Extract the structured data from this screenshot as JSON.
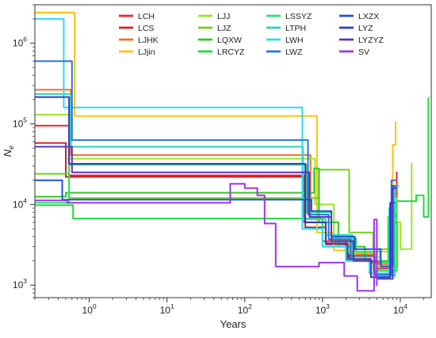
{
  "chart_data": {
    "type": "line",
    "step": true,
    "xlabel": "Years",
    "ylabel": "N",
    "ylabel_subscript": "e",
    "x_scale": "log",
    "y_scale": "log",
    "xlim": [
      0.2,
      25000
    ],
    "ylim": [
      700,
      3000000
    ],
    "x_ticks": [
      {
        "value": 1,
        "label": "10",
        "exp": "0"
      },
      {
        "value": 10,
        "label": "10",
        "exp": "1"
      },
      {
        "value": 100,
        "label": "10",
        "exp": "2"
      },
      {
        "value": 1000,
        "label": "10",
        "exp": "3"
      },
      {
        "value": 10000,
        "label": "10",
        "exp": "4"
      }
    ],
    "y_ticks": [
      {
        "value": 1000,
        "label": "10",
        "exp": "3"
      },
      {
        "value": 10000,
        "label": "10",
        "exp": "4"
      },
      {
        "value": 100000,
        "label": "10",
        "exp": "5"
      },
      {
        "value": 1000000,
        "label": "10",
        "exp": "6"
      }
    ],
    "legend_position": "top",
    "series": [
      {
        "name": "LCH",
        "color": "#e8242a",
        "points": [
          [
            0.2,
            95000
          ],
          [
            0.55,
            95000
          ],
          [
            0.55,
            23000
          ],
          [
            580,
            23000
          ],
          [
            580,
            6000
          ],
          [
            1000,
            6000
          ],
          [
            1000,
            3500
          ],
          [
            2000,
            3500
          ],
          [
            2000,
            2500
          ],
          [
            4000,
            2500
          ],
          [
            4000,
            1900
          ],
          [
            8000,
            1900
          ],
          [
            8000,
            6000
          ],
          [
            9000,
            6000
          ],
          [
            9000,
            25000
          ]
        ]
      },
      {
        "name": "LCS",
        "color": "#d21e26",
        "points": [
          [
            0.2,
            58000
          ],
          [
            0.5,
            58000
          ],
          [
            0.5,
            22000
          ],
          [
            600,
            22000
          ],
          [
            600,
            5200
          ],
          [
            1100,
            5200
          ],
          [
            1100,
            3200
          ],
          [
            2200,
            3200
          ],
          [
            2200,
            2200
          ],
          [
            5000,
            2200
          ],
          [
            5000,
            1600
          ],
          [
            8000,
            1600
          ],
          [
            8000,
            7500
          ],
          [
            9000,
            7500
          ],
          [
            9000,
            14000
          ]
        ]
      },
      {
        "name": "LJHK",
        "color": "#f07020",
        "points": [
          [
            0.2,
            265000
          ],
          [
            0.58,
            265000
          ],
          [
            0.58,
            41000
          ],
          [
            700,
            41000
          ],
          [
            700,
            7000
          ],
          [
            1200,
            7000
          ],
          [
            1200,
            3600
          ],
          [
            2500,
            3600
          ],
          [
            2500,
            2400
          ],
          [
            5000,
            2400
          ],
          [
            5000,
            1800
          ],
          [
            8200,
            1800
          ],
          [
            8200,
            13000
          ],
          [
            9000,
            13000
          ]
        ]
      },
      {
        "name": "LJjin",
        "color": "#ffc20a",
        "points": [
          [
            0.2,
            2400000
          ],
          [
            0.65,
            2400000
          ],
          [
            0.65,
            125000
          ],
          [
            850,
            125000
          ],
          [
            850,
            4500
          ],
          [
            1400,
            4500
          ],
          [
            1400,
            2700
          ],
          [
            2600,
            2700
          ],
          [
            2600,
            2200
          ],
          [
            5500,
            2200
          ],
          [
            5500,
            2600
          ],
          [
            8000,
            2600
          ],
          [
            8000,
            55000
          ],
          [
            8700,
            55000
          ],
          [
            8700,
            105000
          ]
        ]
      },
      {
        "name": "LJJ",
        "color": "#9be628",
        "points": [
          [
            0.2,
            130000
          ],
          [
            0.55,
            130000
          ],
          [
            0.55,
            37000
          ],
          [
            800,
            37000
          ],
          [
            800,
            10000
          ],
          [
            1400,
            10000
          ],
          [
            1400,
            4000
          ],
          [
            2200,
            4000
          ],
          [
            2200,
            2500
          ],
          [
            5000,
            2500
          ],
          [
            5000,
            1700
          ],
          [
            9200,
            1700
          ],
          [
            9200,
            6000
          ],
          [
            10000,
            6000
          ],
          [
            10000,
            2800
          ],
          [
            14000,
            2800
          ],
          [
            14000,
            32000
          ]
        ]
      },
      {
        "name": "LJZ",
        "color": "#6ed21e",
        "points": [
          [
            0.2,
            24000
          ],
          [
            0.55,
            24000
          ],
          [
            0.55,
            12000
          ],
          [
            900,
            12000
          ],
          [
            900,
            27000
          ],
          [
            2200,
            27000
          ],
          [
            2200,
            4500
          ],
          [
            4500,
            4500
          ],
          [
            4500,
            2800
          ],
          [
            7500,
            2800
          ],
          [
            7500,
            9500
          ],
          [
            9000,
            9500
          ],
          [
            9000,
            12000
          ]
        ]
      },
      {
        "name": "LQXW",
        "color": "#32c81e",
        "points": [
          [
            0.2,
            12500
          ],
          [
            0.5,
            12500
          ],
          [
            0.5,
            14000
          ],
          [
            780,
            14000
          ],
          [
            780,
            28000
          ],
          [
            900,
            28000
          ],
          [
            900,
            6000
          ],
          [
            1600,
            6000
          ],
          [
            1600,
            3000
          ],
          [
            3500,
            3000
          ],
          [
            3500,
            2000
          ],
          [
            7000,
            2000
          ],
          [
            7000,
            7000
          ],
          [
            9000,
            7000
          ]
        ]
      },
      {
        "name": "LRCYZ",
        "color": "#1edc3c",
        "points": [
          [
            0.2,
            9800
          ],
          [
            0.62,
            9800
          ],
          [
            0.62,
            6700
          ],
          [
            1000,
            6700
          ],
          [
            1000,
            3000
          ],
          [
            2000,
            3000
          ],
          [
            2000,
            2000
          ],
          [
            4500,
            2000
          ],
          [
            4500,
            1500
          ],
          [
            9000,
            1500
          ],
          [
            9000,
            11000
          ],
          [
            16000,
            11000
          ],
          [
            16000,
            13000
          ],
          [
            20000,
            13000
          ],
          [
            20000,
            7000
          ],
          [
            23000,
            7000
          ],
          [
            23000,
            210000
          ]
        ]
      },
      {
        "name": "LSSYZ",
        "color": "#2de06e",
        "points": [
          [
            0.2,
            10500
          ],
          [
            0.55,
            10500
          ],
          [
            0.55,
            31000
          ],
          [
            620,
            31000
          ],
          [
            620,
            8000
          ],
          [
            1300,
            8000
          ],
          [
            1300,
            3800
          ],
          [
            2700,
            3800
          ],
          [
            2700,
            2600
          ],
          [
            5500,
            2600
          ],
          [
            5500,
            1900
          ],
          [
            8000,
            1900
          ],
          [
            8000,
            15000
          ],
          [
            8800,
            15000
          ]
        ]
      },
      {
        "name": "LTPH",
        "color": "#28d2b4",
        "points": [
          [
            0.2,
            235000
          ],
          [
            0.58,
            235000
          ],
          [
            0.58,
            52000
          ],
          [
            560,
            52000
          ],
          [
            560,
            6600
          ],
          [
            1100,
            6600
          ],
          [
            1100,
            4200
          ],
          [
            2400,
            4200
          ],
          [
            2400,
            2000
          ],
          [
            4600,
            2000
          ],
          [
            4600,
            1300
          ],
          [
            8500,
            1300
          ],
          [
            8500,
            17000
          ],
          [
            9500,
            17000
          ]
        ]
      },
      {
        "name": "LWH",
        "color": "#28dcf0",
        "points": [
          [
            0.2,
            2000000
          ],
          [
            0.47,
            2000000
          ],
          [
            0.47,
            160000
          ],
          [
            550,
            160000
          ],
          [
            550,
            5000
          ],
          [
            1000,
            5000
          ],
          [
            1000,
            3000
          ],
          [
            2000,
            3000
          ],
          [
            2000,
            2000
          ],
          [
            4000,
            2000
          ],
          [
            4000,
            1400
          ],
          [
            7200,
            1400
          ],
          [
            7200,
            9000
          ],
          [
            8200,
            9000
          ],
          [
            8200,
            17000
          ]
        ]
      },
      {
        "name": "LWZ",
        "color": "#2873e6",
        "points": [
          [
            0.2,
            600000
          ],
          [
            0.6,
            600000
          ],
          [
            0.6,
            63000
          ],
          [
            650,
            63000
          ],
          [
            650,
            7500
          ],
          [
            1200,
            7500
          ],
          [
            1200,
            3700
          ],
          [
            2300,
            3700
          ],
          [
            2300,
            2300
          ],
          [
            4700,
            2300
          ],
          [
            4700,
            1350
          ],
          [
            7700,
            1350
          ],
          [
            7700,
            20000
          ],
          [
            8600,
            20000
          ]
        ]
      },
      {
        "name": "LXZX",
        "color": "#1f50dc",
        "points": [
          [
            0.2,
            20000
          ],
          [
            0.45,
            20000
          ],
          [
            0.45,
            11500
          ],
          [
            720,
            11500
          ],
          [
            720,
            8300
          ],
          [
            1300,
            8300
          ],
          [
            1300,
            4000
          ],
          [
            2600,
            4000
          ],
          [
            2600,
            2800
          ],
          [
            5600,
            2800
          ],
          [
            5600,
            1700
          ],
          [
            7800,
            1700
          ],
          [
            7800,
            17000
          ],
          [
            8600,
            17000
          ]
        ]
      },
      {
        "name": "LYZ",
        "color": "#2d3cc8",
        "points": [
          [
            0.2,
            215000
          ],
          [
            0.55,
            215000
          ],
          [
            0.55,
            32000
          ],
          [
            600,
            32000
          ],
          [
            600,
            6000
          ],
          [
            1100,
            6000
          ],
          [
            1100,
            3300
          ],
          [
            2100,
            3300
          ],
          [
            2100,
            2100
          ],
          [
            4200,
            2100
          ],
          [
            4200,
            1250
          ],
          [
            7400,
            1250
          ],
          [
            7400,
            10500
          ],
          [
            8400,
            10500
          ]
        ]
      },
      {
        "name": "LYZYZ",
        "color": "#5a32c8",
        "points": [
          [
            0.2,
            52000
          ],
          [
            0.6,
            52000
          ],
          [
            0.6,
            25000
          ],
          [
            680,
            25000
          ],
          [
            680,
            7000
          ],
          [
            1300,
            7000
          ],
          [
            1300,
            3500
          ],
          [
            2500,
            3500
          ],
          [
            2500,
            2000
          ],
          [
            5000,
            2000
          ],
          [
            5000,
            1200
          ],
          [
            8000,
            1200
          ],
          [
            8000,
            16000
          ],
          [
            8800,
            16000
          ]
        ]
      },
      {
        "name": "SV",
        "color": "#a032e6",
        "points": [
          [
            0.2,
            11200
          ],
          [
            0.52,
            11200
          ],
          [
            0.52,
            10500
          ],
          [
            65,
            10500
          ],
          [
            65,
            18000
          ],
          [
            100,
            18000
          ],
          [
            100,
            16000
          ],
          [
            145,
            16000
          ],
          [
            145,
            13000
          ],
          [
            180,
            13000
          ],
          [
            180,
            5800
          ],
          [
            250,
            5800
          ],
          [
            250,
            1700
          ],
          [
            900,
            1700
          ],
          [
            900,
            1900
          ],
          [
            1900,
            1900
          ],
          [
            1900,
            1300
          ],
          [
            2800,
            1300
          ],
          [
            2800,
            850
          ],
          [
            4600,
            850
          ],
          [
            4600,
            6500
          ],
          [
            5000,
            6500
          ],
          [
            5000,
            1000
          ]
        ]
      }
    ]
  }
}
